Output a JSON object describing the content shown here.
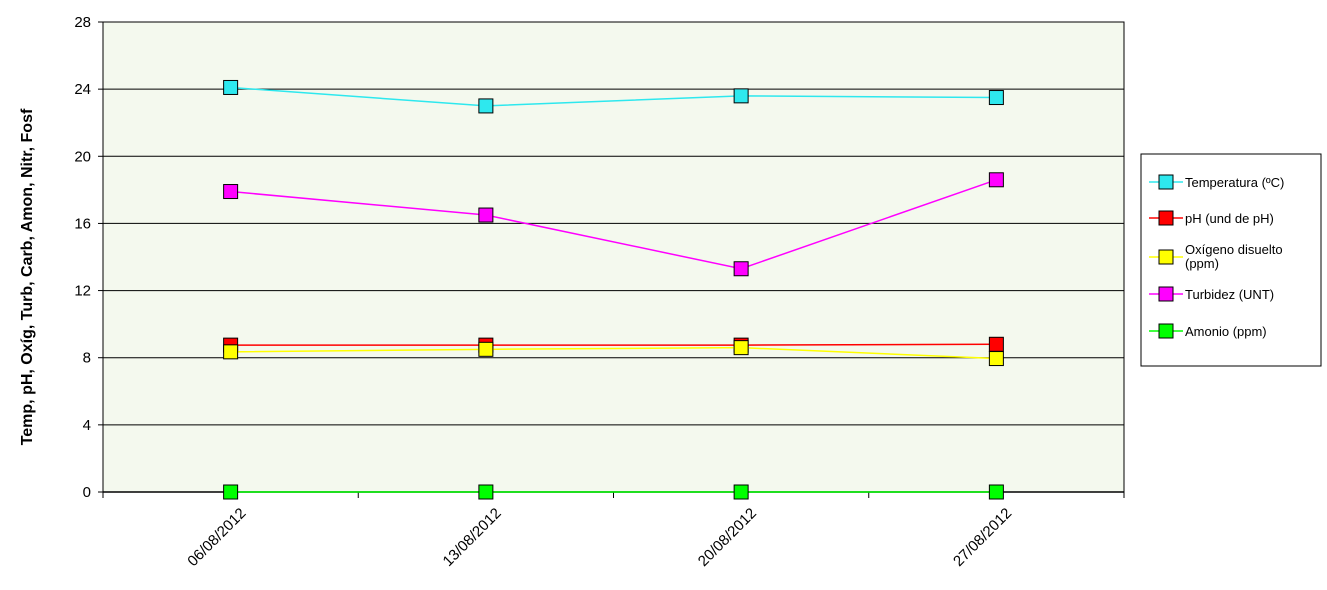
{
  "chart_data": {
    "type": "line",
    "title": "",
    "xlabel": "",
    "ylabel": "Temp, pH, Oxíg, Turb, Carb, Amon, Nitr, Fosf",
    "categories": [
      "06/08/2012",
      "13/08/2012",
      "20/08/2012",
      "27/08/2012"
    ],
    "ylim": [
      0,
      28
    ],
    "yticks": [
      0,
      4,
      8,
      12,
      16,
      20,
      24,
      28
    ],
    "grid": true,
    "legend_position": "right",
    "plot_background": "#f4f9ee",
    "series": [
      {
        "name": "Temperatura (ºC)",
        "color": "#2ee8ee",
        "values": [
          24.1,
          23.0,
          23.6,
          23.5
        ]
      },
      {
        "name": "pH (und de pH)",
        "color": "#ff0000",
        "values": [
          8.75,
          8.75,
          8.75,
          8.8
        ]
      },
      {
        "name": "Oxígeno disuelto (ppm)",
        "color": "#ffff00",
        "values": [
          8.35,
          8.5,
          8.6,
          7.95
        ]
      },
      {
        "name": "Turbidez (UNT)",
        "color": "#ff00ff",
        "values": [
          17.9,
          16.5,
          13.3,
          18.6
        ]
      },
      {
        "name": "Amonio (ppm)",
        "color": "#00ff00",
        "values": [
          0.0,
          0.0,
          0.0,
          0.0
        ]
      }
    ]
  }
}
